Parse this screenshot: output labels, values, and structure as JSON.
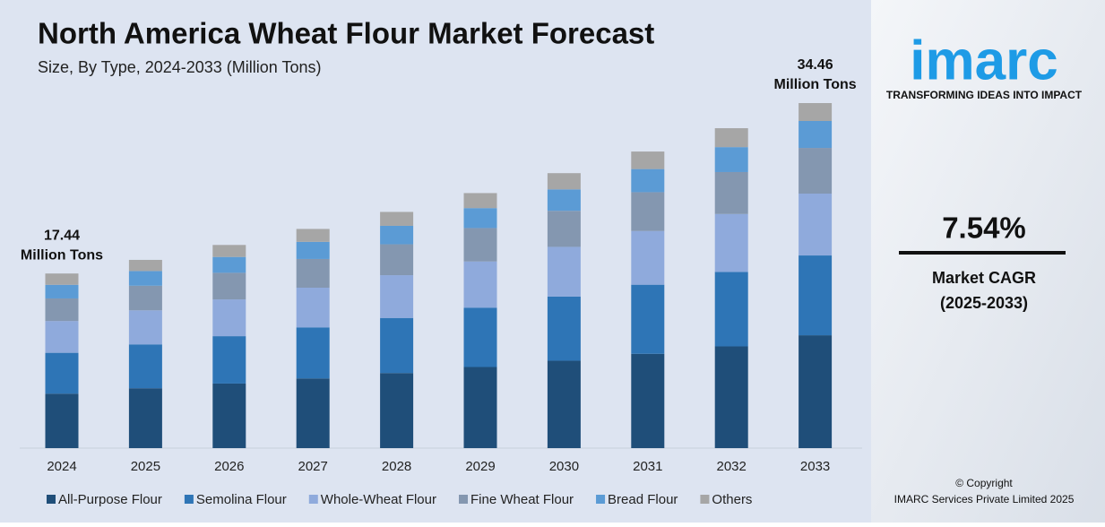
{
  "chart_data": {
    "type": "stacked_bar",
    "title": "North America Wheat Flour Market Forecast",
    "subtitle": "Size, By Type, 2024-2033 (Million Tons)",
    "categories": [
      "2024",
      "2025",
      "2026",
      "2027",
      "2028",
      "2029",
      "2030",
      "2031",
      "2032",
      "2033"
    ],
    "series": [
      {
        "name": "All-Purpose Flour",
        "color": "#1f4e79",
        "values": [
          5.44,
          5.98,
          6.45,
          6.96,
          7.5,
          8.1,
          8.73,
          9.42,
          10.16,
          11.27
        ]
      },
      {
        "name": "Semolina Flour",
        "color": "#2e75b6",
        "values": [
          4.08,
          4.38,
          4.73,
          5.1,
          5.5,
          5.93,
          6.4,
          6.9,
          7.44,
          7.97
        ]
      },
      {
        "name": "Whole-Wheat Flour",
        "color": "#8faadc",
        "values": [
          3.17,
          3.4,
          3.67,
          3.96,
          4.27,
          4.61,
          4.97,
          5.36,
          5.78,
          6.18
        ]
      },
      {
        "name": "Fine Wheat Flour",
        "color": "#8497b0",
        "values": [
          2.26,
          2.46,
          2.66,
          2.87,
          3.09,
          3.34,
          3.6,
          3.88,
          4.19,
          4.56
        ]
      },
      {
        "name": "Bread Flour",
        "color": "#5b9bd5",
        "values": [
          1.36,
          1.47,
          1.58,
          1.71,
          1.84,
          1.99,
          2.14,
          2.31,
          2.49,
          2.69
        ]
      },
      {
        "name": "Others",
        "color": "#a6a6a6",
        "values": [
          1.13,
          1.11,
          1.2,
          1.29,
          1.39,
          1.5,
          1.62,
          1.75,
          1.89,
          1.79
        ]
      }
    ],
    "annotations": [
      {
        "category": "2024",
        "value": 17.44,
        "unit": "Million Tons"
      },
      {
        "category": "2033",
        "value": 34.46,
        "unit": "Million Tons"
      }
    ]
  },
  "panel": {
    "logo": "imarc",
    "tagline": "TRANSFORMING IDEAS INTO IMPACT",
    "cagr": "7.54%",
    "cagr_label": "Market CAGR",
    "cagr_period": "(2025-2033)",
    "copyright": "© Copyright",
    "company": "IMARC Services Private Limited 2025"
  }
}
